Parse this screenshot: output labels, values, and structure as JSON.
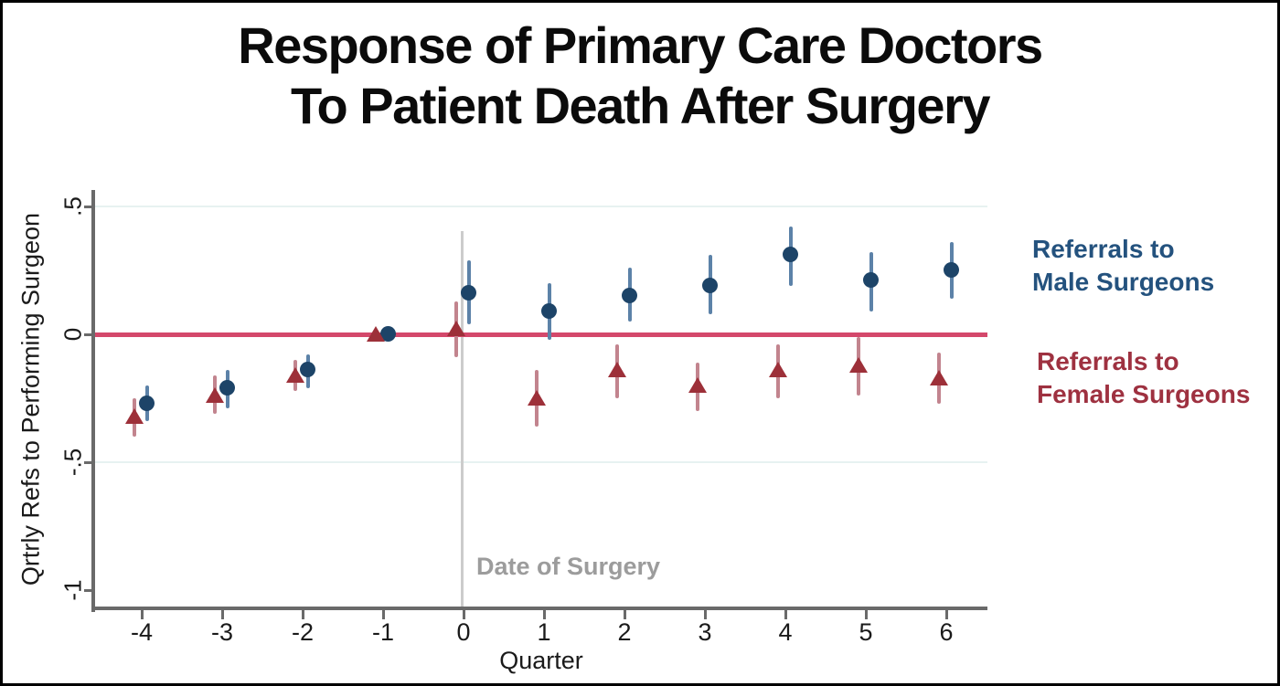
{
  "title": "Response of Primary Care Doctors\nTo Patient Death After Surgery",
  "legend": {
    "male": "Referrals to\nMale Surgeons",
    "female": "Referrals to\nFemale Surgeons"
  },
  "colors": {
    "male_marker": "#1D4468",
    "male_ci": "#5C82A8",
    "male_text": "#24527E",
    "female_marker": "#9D3039",
    "female_ci": "#C2848E",
    "female_text": "#9E3140",
    "zero_line": "#D4486B",
    "gridline": "#E7F2F1",
    "axis": "#6A6A6A",
    "event_line": "#CCCCCC",
    "event_text": "#9C9C9C",
    "tick_text": "#1A1A1A"
  },
  "chart_data": {
    "type": "scatter",
    "title": "Response of Primary Care Doctors To Patient Death After Surgery",
    "xlabel": "Quarter",
    "ylabel": "Qrtrly Refs to Performing Surgeon",
    "xlim": [
      -4.6,
      6.5
    ],
    "ylim": [
      -1.07,
      0.56
    ],
    "grid": "horizontal-light",
    "legend_position": "right",
    "x_ticks": [
      {
        "v": -4,
        "label": "-4"
      },
      {
        "v": -3,
        "label": "-3"
      },
      {
        "v": -2,
        "label": "-2"
      },
      {
        "v": -1,
        "label": "-1"
      },
      {
        "v": 0,
        "label": "0"
      },
      {
        "v": 1,
        "label": "1"
      },
      {
        "v": 2,
        "label": "2"
      },
      {
        "v": 3,
        "label": "3"
      },
      {
        "v": 4,
        "label": "4"
      },
      {
        "v": 5,
        "label": "5"
      },
      {
        "v": 6,
        "label": "6"
      }
    ],
    "y_ticks": [
      {
        "v": 0.5,
        "label": ".5"
      },
      {
        "v": 0,
        "label": "0"
      },
      {
        "v": -0.5,
        "label": "-.5"
      },
      {
        "v": -1,
        "label": "-1"
      }
    ],
    "y_gridlines": [
      0.5,
      -0.5
    ],
    "ref_line_y": 0,
    "event_line_x": 0,
    "event_line_label": "Date of Surgery",
    "series": [
      {
        "name": "Referrals to Male Surgeons",
        "marker": "circle",
        "points": [
          {
            "q": -4,
            "est": -0.27,
            "lo": -0.34,
            "hi": -0.2
          },
          {
            "q": -3,
            "est": -0.21,
            "lo": -0.29,
            "hi": -0.14
          },
          {
            "q": -2,
            "est": -0.14,
            "lo": -0.21,
            "hi": -0.08
          },
          {
            "q": -1,
            "est": 0,
            "lo": 0,
            "hi": 0
          },
          {
            "q": 0,
            "est": 0.16,
            "lo": 0.04,
            "hi": 0.29
          },
          {
            "q": 1,
            "est": 0.09,
            "lo": -0.02,
            "hi": 0.2
          },
          {
            "q": 2,
            "est": 0.15,
            "lo": 0.05,
            "hi": 0.26
          },
          {
            "q": 3,
            "est": 0.19,
            "lo": 0.08,
            "hi": 0.31
          },
          {
            "q": 4,
            "est": 0.31,
            "lo": 0.19,
            "hi": 0.42
          },
          {
            "q": 5,
            "est": 0.21,
            "lo": 0.09,
            "hi": 0.32
          },
          {
            "q": 6,
            "est": 0.25,
            "lo": 0.14,
            "hi": 0.36
          }
        ]
      },
      {
        "name": "Referrals to Female Surgeons",
        "marker": "triangle",
        "points": [
          {
            "q": -4,
            "est": -0.32,
            "lo": -0.4,
            "hi": -0.25
          },
          {
            "q": -3,
            "est": -0.24,
            "lo": -0.31,
            "hi": -0.16
          },
          {
            "q": -2,
            "est": -0.16,
            "lo": -0.22,
            "hi": -0.1
          },
          {
            "q": -1,
            "est": 0,
            "lo": 0,
            "hi": 0
          },
          {
            "q": 0,
            "est": 0.02,
            "lo": -0.09,
            "hi": 0.13
          },
          {
            "q": 1,
            "est": -0.25,
            "lo": -0.36,
            "hi": -0.14
          },
          {
            "q": 2,
            "est": -0.14,
            "lo": -0.25,
            "hi": -0.04
          },
          {
            "q": 3,
            "est": -0.2,
            "lo": -0.3,
            "hi": -0.11
          },
          {
            "q": 4,
            "est": -0.14,
            "lo": -0.25,
            "hi": -0.04
          },
          {
            "q": 5,
            "est": -0.12,
            "lo": -0.24,
            "hi": -0.01
          },
          {
            "q": 6,
            "est": -0.17,
            "lo": -0.27,
            "hi": -0.07
          }
        ]
      }
    ]
  }
}
